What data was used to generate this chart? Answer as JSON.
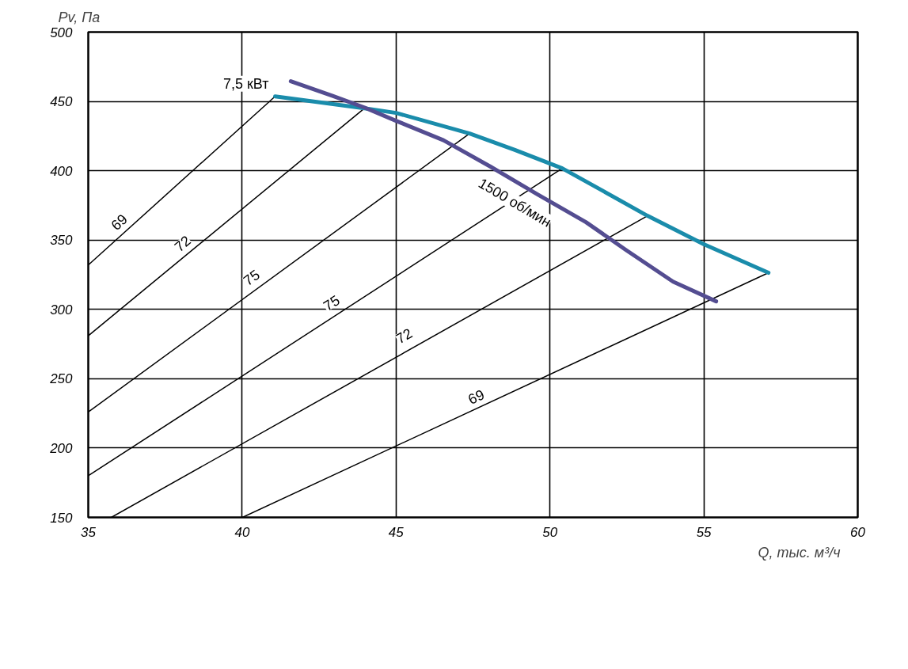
{
  "chart_data": {
    "type": "line",
    "xlabel": "Q, тыс. м³/ч",
    "ylabel": "Pv, Па",
    "xlim": [
      35,
      60
    ],
    "ylim": [
      150,
      500
    ],
    "xticks": [
      35,
      40,
      45,
      50,
      55,
      60
    ],
    "yticks": [
      150,
      200,
      250,
      300,
      350,
      400,
      450,
      500
    ],
    "grid": true,
    "series": [
      {
        "color": "#000000",
        "x": [
          35,
          41.07
        ],
        "values": [
          332,
          453.6
        ]
      },
      {
        "color": "#000000",
        "x": [
          35,
          43.97
        ],
        "values": [
          281,
          445
        ]
      },
      {
        "color": "#000000",
        "x": [
          35,
          47.39
        ],
        "values": [
          226,
          426.8
        ]
      },
      {
        "color": "#000000",
        "x": [
          35,
          50.4
        ],
        "values": [
          180,
          401.7
        ]
      },
      {
        "color": "#000000",
        "x": [
          35.75,
          53.17
        ],
        "values": [
          150,
          367.5
        ]
      },
      {
        "color": "#000000",
        "x": [
          40.01,
          57.1
        ],
        "values": [
          150,
          326.4
        ]
      },
      {
        "color": "#1a8cab",
        "x": [
          41.07,
          43.97,
          45,
          47.39,
          48.86,
          50.4,
          51.7,
          53.17,
          55,
          57.1
        ],
        "values": [
          453.6,
          445,
          441.7,
          426.8,
          415,
          401.7,
          385.7,
          367.5,
          347,
          326.4
        ]
      },
      {
        "color": "#544d91",
        "x": [
          41.58,
          42.94,
          43.97,
          45,
          46.54,
          48.08,
          49.6,
          51.17,
          52.46,
          54,
          55.4
        ],
        "values": [
          464.5,
          454,
          445.6,
          436,
          422,
          402.8,
          382.9,
          362.9,
          343,
          320,
          305.8
        ]
      }
    ],
    "annotations": [
      {
        "text": "69",
        "x": 36.0,
        "y": 363
      },
      {
        "text": "72",
        "x": 38.06,
        "y": 347.5
      },
      {
        "text": "75",
        "x": 40.3,
        "y": 323
      },
      {
        "text": "75",
        "x": 42.9,
        "y": 304.7
      },
      {
        "text": "72",
        "x": 45.26,
        "y": 281
      },
      {
        "text": "69",
        "x": 47.6,
        "y": 237
      },
      "7,5 кВт",
      {
        "text": "1500 об/мин",
        "x": 48.86,
        "y": 377
      }
    ]
  }
}
